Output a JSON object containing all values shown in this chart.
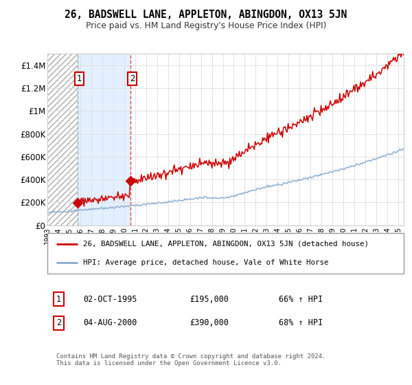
{
  "title": "26, BADSWELL LANE, APPLETON, ABINGDON, OX13 5JN",
  "subtitle": "Price paid vs. HM Land Registry's House Price Index (HPI)",
  "sale1_date": 1995.75,
  "sale1_price": 195000,
  "sale1_label": "1",
  "sale1_date_str": "02-OCT-1995",
  "sale1_price_str": "£195,000",
  "sale1_hpi_str": "66% ↑ HPI",
  "sale2_date": 2000.58,
  "sale2_price": 390000,
  "sale2_label": "2",
  "sale2_date_str": "04-AUG-2000",
  "sale2_price_str": "£390,000",
  "sale2_hpi_str": "68% ↑ HPI",
  "xmin": 1993.0,
  "xmax": 2025.5,
  "ymin": 0,
  "ymax": 1500000,
  "line_color_red": "#cc0000",
  "line_color_blue": "#88aad0",
  "shade_color": "#ddeeff",
  "legend_label_red": "26, BADSWELL LANE, APPLETON, ABINGDON, OX13 5JN (detached house)",
  "legend_label_blue": "HPI: Average price, detached house, Vale of White Horse",
  "footer": "Contains HM Land Registry data © Crown copyright and database right 2024.\nThis data is licensed under the Open Government Licence v3.0.",
  "yticks": [
    0,
    200000,
    400000,
    600000,
    800000,
    1000000,
    1200000,
    1400000
  ],
  "ytick_labels": [
    "£0",
    "£200K",
    "£400K",
    "£600K",
    "£800K",
    "£1M",
    "£1.2M",
    "£1.4M"
  ],
  "xticks": [
    1993,
    1994,
    1995,
    1996,
    1997,
    1998,
    1999,
    2000,
    2001,
    2002,
    2003,
    2004,
    2005,
    2006,
    2007,
    2008,
    2009,
    2010,
    2011,
    2012,
    2013,
    2014,
    2015,
    2016,
    2017,
    2018,
    2019,
    2020,
    2021,
    2022,
    2023,
    2024,
    2025
  ]
}
